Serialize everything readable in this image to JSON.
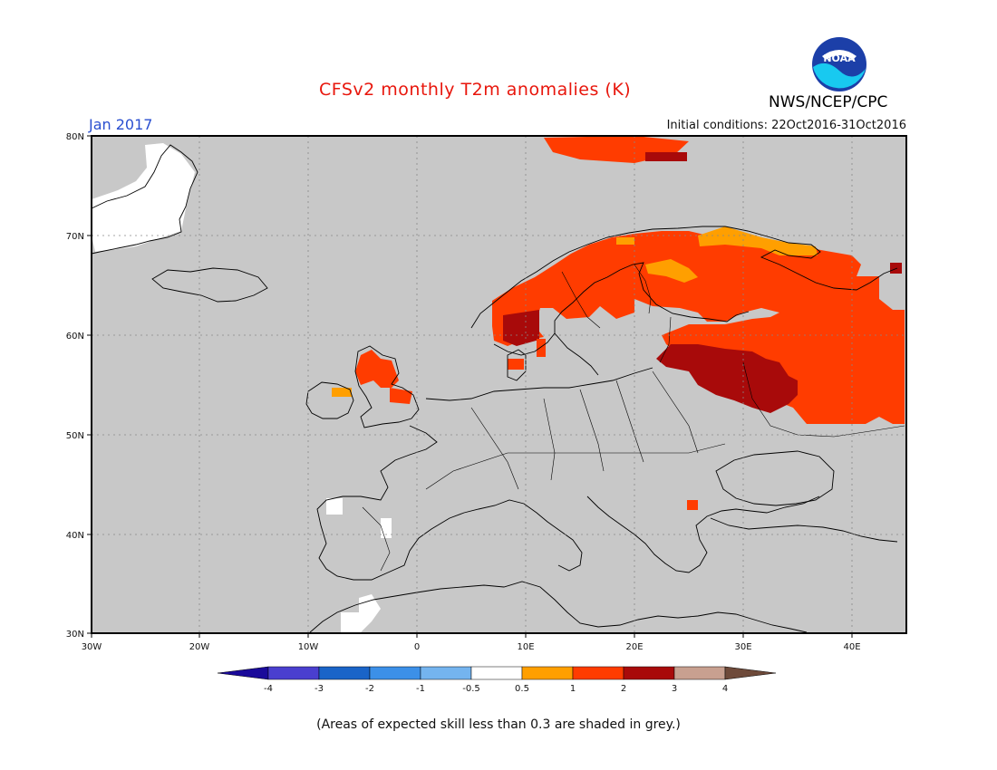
{
  "title": "CFSv2 monthly T2m anomalies (K)",
  "month_label": "Jan 2017",
  "initial_conditions": "Initial conditions: 22Oct2016-31Oct2016",
  "agency": "NWS/NCEP/CPC",
  "logo_text": "NOAA",
  "footnote": "(Areas of expected skill less than 0.3 are shaded in grey.)",
  "axes": {
    "lat_ticks": [
      "80N",
      "70N",
      "60N",
      "50N",
      "40N",
      "30N"
    ],
    "lon_ticks": [
      "30W",
      "20W",
      "10W",
      "0",
      "10E",
      "20E",
      "30E",
      "40E"
    ],
    "lat_range": [
      30,
      80
    ],
    "lon_range": [
      -30,
      45
    ]
  },
  "colorbar": {
    "labels": [
      "-4",
      "-3",
      "-2",
      "-1",
      "-0.5",
      "0.5",
      "1",
      "2",
      "3",
      "4"
    ],
    "colors": [
      "#1a0a9a",
      "#4a3fcf",
      "#1a64c8",
      "#3c90e8",
      "#74b4ef",
      "#ffffff",
      "#ff9f00",
      "#ff3c00",
      "#a80a0a",
      "#c8a090",
      "#6e4a3a"
    ]
  },
  "colors": {
    "skill_grey": "#c8c8c8",
    "title_red": "#e8160c",
    "month_blue": "#2a4fd0"
  },
  "anomaly_regions": [
    {
      "name": "Svalbard",
      "category": "1-2",
      "color": "#ff3c00"
    },
    {
      "name": "Svalbard east",
      "category": "2-3",
      "color": "#a80a0a"
    },
    {
      "name": "Scandinavia",
      "category": "1-2",
      "color": "#ff3c00"
    },
    {
      "name": "Southern Norway",
      "category": "2-3",
      "color": "#a80a0a"
    },
    {
      "name": "Northern Fennoscandia coast",
      "category": "0.5-1",
      "color": "#ff9f00"
    },
    {
      "name": "Western Russia",
      "category": "1-2",
      "color": "#ff3c00"
    },
    {
      "name": "Baltic / Western Russia core",
      "category": "2-3",
      "color": "#a80a0a"
    },
    {
      "name": "Scotland",
      "category": "1-2",
      "color": "#ff3c00"
    },
    {
      "name": "Northern Ireland",
      "category": "0.5-1",
      "color": "#ff9f00"
    },
    {
      "name": "Bulgaria",
      "category": "1-2",
      "color": "#ff3c00"
    },
    {
      "name": "Iberia / Greenland patches",
      "category": "-0.5-0.5",
      "color": "#ffffff"
    }
  ]
}
